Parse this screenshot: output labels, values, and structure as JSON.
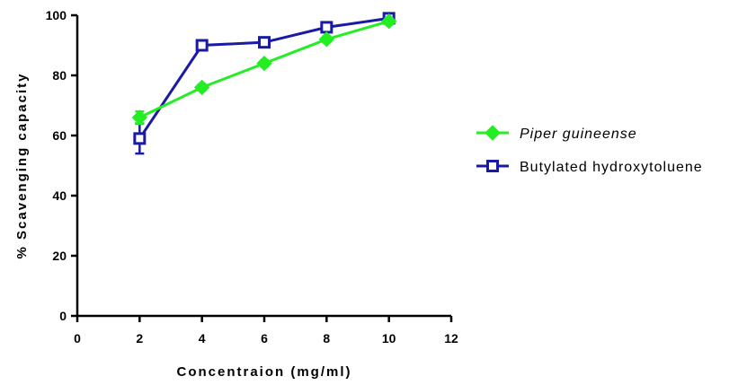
{
  "chart_data": {
    "type": "line",
    "xlabel": "Concentraion (mg/ml)",
    "ylabel": "% Scavenging capacity",
    "xlim": [
      0,
      12
    ],
    "ylim": [
      0,
      100
    ],
    "xticks": [
      0,
      2,
      4,
      6,
      8,
      10,
      12
    ],
    "yticks": [
      0,
      20,
      40,
      60,
      80,
      100
    ],
    "xtick_labels": [
      "0",
      "2",
      "4",
      "6",
      "8",
      "10",
      "12"
    ],
    "ytick_labels": [
      "0",
      "20",
      "40",
      "60",
      "80",
      "100"
    ],
    "grid": false,
    "legend_position": "right",
    "series": [
      {
        "name": "Piper guineense",
        "italic": true,
        "color": "#22ee22",
        "marker": "filled-diamond",
        "x": [
          2,
          4,
          6,
          8,
          10
        ],
        "y": [
          66,
          76,
          84,
          92,
          98
        ],
        "err": [
          2,
          1,
          1,
          1,
          1
        ]
      },
      {
        "name": "Butylated hydroxytoluene",
        "italic": false,
        "color": "#1a1aa6",
        "marker": "open-square",
        "x": [
          2,
          4,
          6,
          8,
          10
        ],
        "y": [
          59,
          90,
          91,
          96,
          99
        ],
        "err": [
          5,
          1,
          1,
          1,
          1
        ]
      }
    ]
  }
}
